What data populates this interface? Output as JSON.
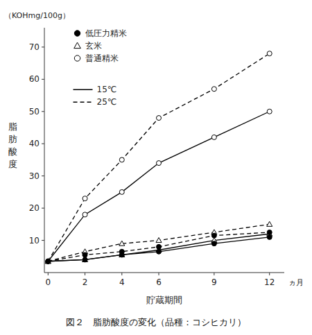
{
  "chart_data": {
    "type": "line",
    "title": "図２　脂肪酸度の変化（品種：コシヒカリ）",
    "x_label": "貯蔵期間",
    "x_unit_label": "ヵ月",
    "y_label": "脂肪酸度",
    "y_unit_label": "（KOHmg/100g）",
    "color": "black",
    "grid": false,
    "x": [
      0,
      2,
      4,
      6,
      9,
      12
    ],
    "xlim": [
      -0.2,
      12.8
    ],
    "xticks": [
      0,
      2,
      4,
      6,
      9,
      12
    ],
    "ylim": [
      0,
      76
    ],
    "yticks": [
      10,
      20,
      30,
      40,
      50,
      60,
      70
    ],
    "series": [
      {
        "marker": "open-circle",
        "line_style": "dashed",
        "values": [
          3.5,
          23.0,
          35.0,
          48.0,
          57.0,
          68.0
        ]
      },
      {
        "marker": "open-circle",
        "line_style": "solid",
        "values": [
          3.5,
          18.0,
          25.0,
          34.0,
          42.0,
          50.0
        ]
      },
      {
        "marker": "open-triangle",
        "line_style": "dashed",
        "values": [
          3.5,
          6.5,
          9.0,
          10.0,
          12.5,
          15.0
        ]
      },
      {
        "marker": "open-triangle",
        "line_style": "solid",
        "values": [
          3.5,
          4.0,
          5.5,
          7.0,
          10.0,
          12.0
        ]
      },
      {
        "marker": "filled-circle",
        "line_style": "dashed",
        "values": [
          3.5,
          5.5,
          6.5,
          8.0,
          11.5,
          12.5
        ]
      },
      {
        "marker": "filled-circle",
        "line_style": "solid",
        "values": [
          3.5,
          4.0,
          5.5,
          6.5,
          9.0,
          11.0
        ]
      }
    ],
    "marker_legend": [
      {
        "label": "低圧力精米",
        "marker": "filled-circle"
      },
      {
        "label": "玄米",
        "marker": "open-triangle"
      },
      {
        "label": "普通精米",
        "marker": "open-circle"
      }
    ],
    "line_legend": [
      {
        "label": "15℃",
        "line_style": "solid"
      },
      {
        "label": "25℃",
        "line_style": "dashed"
      }
    ]
  }
}
